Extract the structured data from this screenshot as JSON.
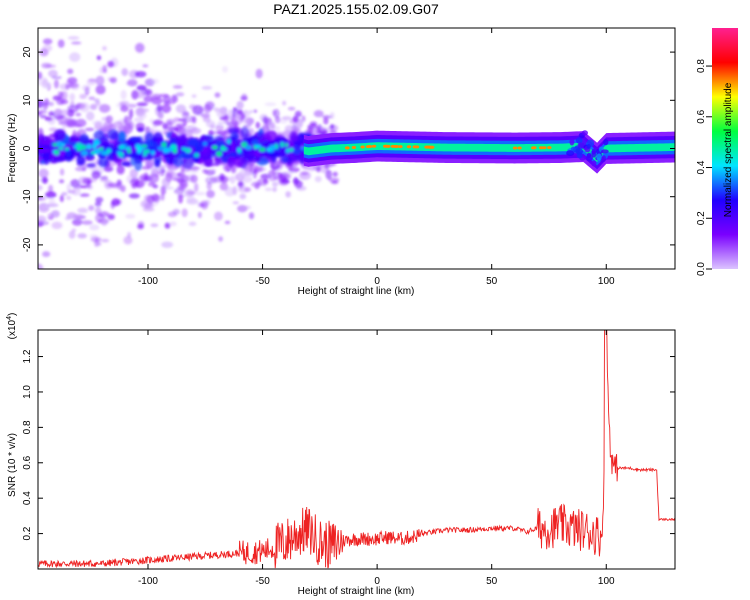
{
  "figure_title": "PAZ1.2025.155.02.09.G07",
  "chart_data": [
    {
      "type": "heatmap",
      "title": "",
      "xlabel": "Height of straight line (km)",
      "ylabel": "Frequency (Hz)",
      "xlim": [
        -148,
        130
      ],
      "ylim": [
        -25,
        25
      ],
      "xticks": [
        -100,
        -50,
        0,
        50,
        100
      ],
      "yticks": [
        -20,
        -10,
        0,
        10,
        20
      ],
      "colorbar": {
        "label": "Normalized spectral amplitude",
        "range": [
          0,
          0.95
        ],
        "ticks": [
          0.0,
          0.2,
          0.4,
          0.6,
          0.8
        ],
        "colormap": [
          "#dcc4ff",
          "#7a00ff",
          "#2000ff",
          "#00e5ff",
          "#00ff40",
          "#ffff00",
          "#ff0000",
          "#ff2090"
        ]
      },
      "ridge": [
        {
          "x": -35,
          "y": 0.0
        },
        {
          "x": -30,
          "y": -0.6
        },
        {
          "x": -20,
          "y": 0.0
        },
        {
          "x": -10,
          "y": 0.2
        },
        {
          "x": 0,
          "y": 0.5
        },
        {
          "x": 10,
          "y": 0.4
        },
        {
          "x": 30,
          "y": 0.2
        },
        {
          "x": 60,
          "y": 0.1
        },
        {
          "x": 80,
          "y": 0.2
        },
        {
          "x": 90,
          "y": 0.4
        },
        {
          "x": 96,
          "y": -2.0
        },
        {
          "x": 100,
          "y": 0.0
        },
        {
          "x": 130,
          "y": 0.3
        }
      ]
    },
    {
      "type": "line",
      "title": "",
      "xlabel": "Height of straight line (km)",
      "ylabel": "SNR (10 * v/v)",
      "y_multiplier": "(x10",
      "y_multiplier_exp": "4",
      "xlim": [
        -148,
        130
      ],
      "ylim": [
        0,
        1.35
      ],
      "xticks": [
        -100,
        -50,
        0,
        50,
        100
      ],
      "yticks": [
        0.2,
        0.4,
        0.6,
        0.8,
        1.0,
        1.2
      ],
      "line_color": "#ee2222",
      "series": [
        {
          "x": [
            -148,
            -140,
            -130,
            -120,
            -110,
            -100,
            -90,
            -80,
            -70,
            -60,
            -50,
            -45,
            -40,
            -35,
            -30,
            -25,
            -20,
            -15,
            -10,
            -5,
            0,
            5,
            10,
            15,
            20,
            25,
            30,
            40,
            50,
            60,
            65,
            70,
            75,
            80,
            85,
            90,
            95,
            98,
            99,
            100,
            101,
            102,
            103,
            105,
            110,
            115,
            120,
            121,
            122,
            123,
            125,
            130
          ],
          "y": [
            0.03,
            0.03,
            0.03,
            0.03,
            0.04,
            0.05,
            0.06,
            0.07,
            0.08,
            0.09,
            0.1,
            0.12,
            0.15,
            0.2,
            0.22,
            0.15,
            0.13,
            0.16,
            0.17,
            0.17,
            0.17,
            0.18,
            0.17,
            0.18,
            0.2,
            0.21,
            0.22,
            0.22,
            0.23,
            0.23,
            0.21,
            0.23,
            0.23,
            0.25,
            0.23,
            0.22,
            0.2,
            0.18,
            0.55,
            1.35,
            0.9,
            0.65,
            0.58,
            0.57,
            0.57,
            0.56,
            0.56,
            0.56,
            0.56,
            0.28,
            0.28,
            0.28
          ]
        }
      ]
    }
  ]
}
